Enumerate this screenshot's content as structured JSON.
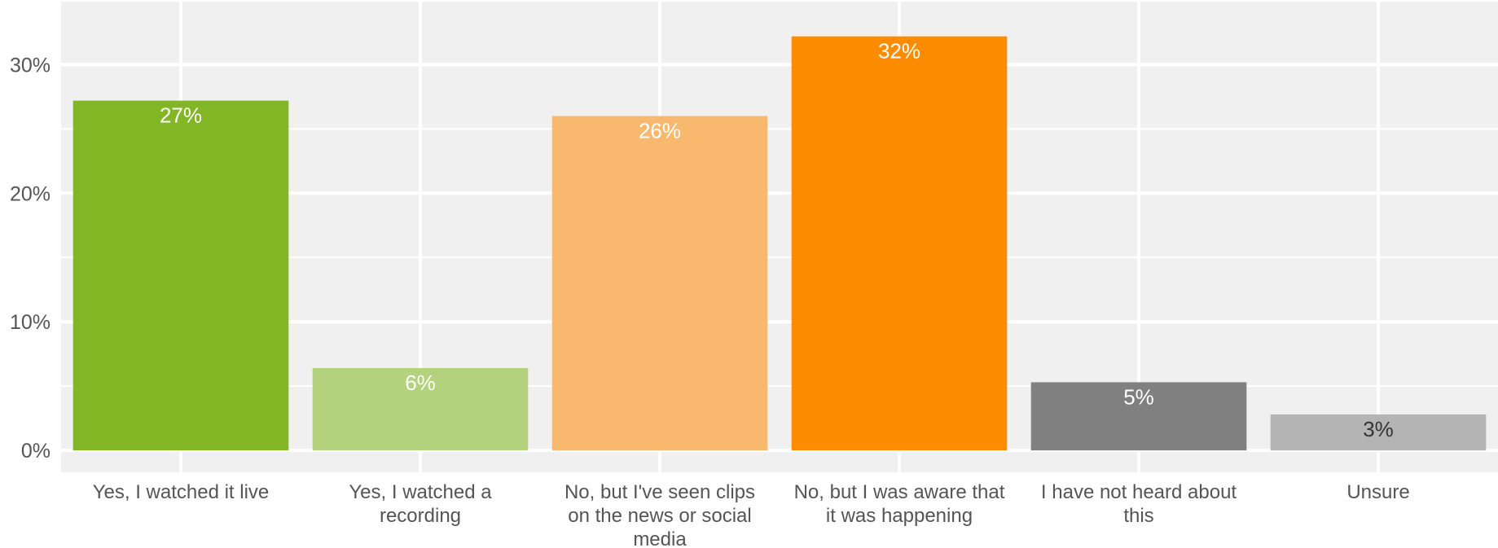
{
  "chart_data": {
    "type": "bar",
    "categories": [
      "Yes, I watched it live",
      "Yes, I watched a recording",
      "No, but I've seen clips on the news or social media",
      "No, but I was aware that it was happening",
      "I have not heard about this",
      "Unsure"
    ],
    "category_lines": [
      [
        "Yes, I watched it live"
      ],
      [
        "Yes, I watched a",
        "recording"
      ],
      [
        "No, but I've seen clips",
        "on the news or social",
        "media"
      ],
      [
        "No, but I was aware that",
        "it was happening"
      ],
      [
        "I have not heard about",
        "this"
      ],
      [
        "Unsure"
      ]
    ],
    "values": [
      27.2,
      6.4,
      26.0,
      32.2,
      5.3,
      2.8
    ],
    "data_labels": [
      "27%",
      "6%",
      "26%",
      "32%",
      "5%",
      "3%"
    ],
    "colors": [
      "#82b624",
      "#b4d27e",
      "#f8b96e",
      "#ff8c00",
      "#808080",
      "#b4b4b4"
    ],
    "label_colors": [
      "#ffffff",
      "#ffffff",
      "#ffffff",
      "#ffffff",
      "#ffffff",
      "#333333"
    ],
    "yticks": [
      0,
      10,
      20,
      30
    ],
    "ytick_labels": [
      "0%",
      "10%",
      "20%",
      "30%"
    ],
    "ylim": [
      -1.7,
      34.9
    ],
    "grid": true,
    "background": "#f0f0f0",
    "title": "",
    "xlabel": "",
    "ylabel": ""
  }
}
